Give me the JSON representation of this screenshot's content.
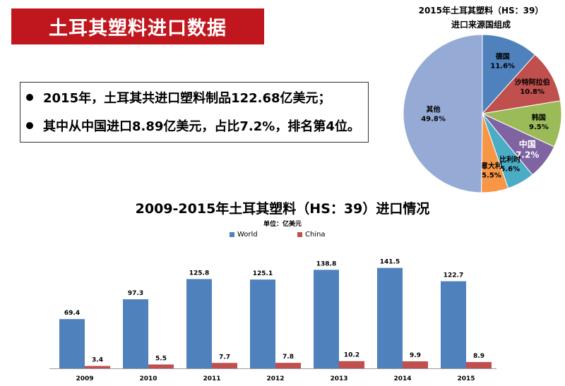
{
  "header": {
    "title": "土耳其塑料进口数据"
  },
  "bullets": [
    "2015年，土耳其共进口塑料制品122.68亿美元；",
    "其中从中国进口8.89亿美元，占比7.2%，排名第4位。"
  ],
  "colors": {
    "banner": "#c0161d",
    "world": "#4f81bd",
    "china": "#c0504d"
  },
  "chart_data": [
    {
      "type": "pie",
      "title": "2015年土耳其塑料（HS：39）",
      "subtitle": "进口来源国组成",
      "slices": [
        {
          "label": "德国",
          "value": 11.6,
          "display": "11.6%",
          "color": "#4f81bd"
        },
        {
          "label": "沙特阿拉伯",
          "value": 10.8,
          "display": "10.8%",
          "color": "#c0504d"
        },
        {
          "label": "韩国",
          "value": 9.5,
          "display": "9.5%",
          "color": "#9bbb59"
        },
        {
          "label": "中国",
          "value": 7.2,
          "display": "7.2%",
          "color": "#8064a2"
        },
        {
          "label": "比利时",
          "value": 5.6,
          "display": "5.6%",
          "color": "#4bacc6"
        },
        {
          "label": "意大利",
          "value": 5.5,
          "display": "5.5%",
          "color": "#f79646"
        },
        {
          "label": "其他",
          "value": 49.8,
          "display": "49.8%",
          "color": "#95abd6"
        }
      ]
    },
    {
      "type": "bar",
      "title": "2009-2015年土耳其塑料（HS：39）进口情况",
      "unit": "单位：亿美元",
      "categories": [
        "2009",
        "2010",
        "2011",
        "2012",
        "2013",
        "2014",
        "2015"
      ],
      "series": [
        {
          "name": "World",
          "values": [
            69.4,
            97.3,
            125.8,
            125.1,
            138.8,
            141.5,
            122.7
          ]
        },
        {
          "name": "China",
          "values": [
            3.4,
            5.5,
            7.7,
            7.8,
            10.2,
            9.9,
            8.9
          ]
        }
      ],
      "ylim": [
        0,
        165
      ],
      "legend": "top-center"
    }
  ]
}
